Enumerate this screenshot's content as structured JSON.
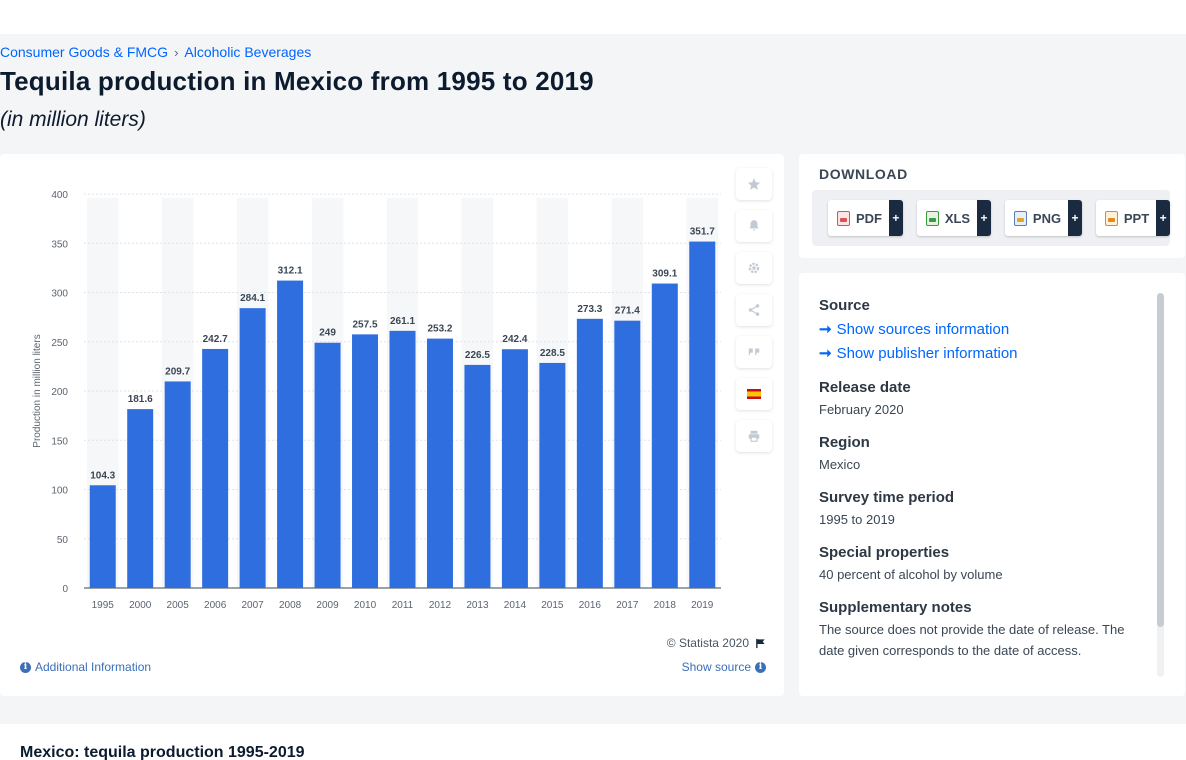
{
  "breadcrumb": [
    {
      "label": "Consumer Goods & FMCG"
    },
    {
      "label": "Alcoholic Beverages"
    }
  ],
  "breadcrumb_separator": "›",
  "page": {
    "title": "Tequila production in Mexico from 1995 to 2019",
    "subtitle": "(in million liters)"
  },
  "chart_data": {
    "type": "bar",
    "categories": [
      "1995",
      "2000",
      "2005",
      "2006",
      "2007",
      "2008",
      "2009",
      "2010",
      "2011",
      "2012",
      "2013",
      "2014",
      "2015",
      "2016",
      "2017",
      "2018",
      "2019"
    ],
    "values": [
      104.3,
      181.6,
      209.7,
      242.7,
      284.1,
      312.1,
      249,
      257.5,
      261.1,
      253.2,
      226.5,
      242.4,
      228.5,
      273.3,
      271.4,
      309.1,
      351.7
    ],
    "value_labels": [
      "104.3",
      "181.6",
      "209.7",
      "242.7",
      "284.1",
      "312.1",
      "249",
      "257.5",
      "261.1",
      "253.2",
      "226.5",
      "242.4",
      "228.5",
      "273.3",
      "271.4",
      "309.1",
      "351.7"
    ],
    "ylabel": "Production in million liters",
    "ylim": [
      0,
      400
    ],
    "yticks": [
      "0",
      "50",
      "100",
      "150",
      "200",
      "250",
      "300",
      "350",
      "400"
    ],
    "grid": true,
    "bar_color": "#2f6ede"
  },
  "chart_footer": {
    "copyright": "© Statista 2020",
    "additional_info": "Additional Information",
    "show_source": "Show source"
  },
  "toolbar_icons": [
    "star-icon",
    "bell-icon",
    "gear-icon",
    "share-icon",
    "quote-icon",
    "spain-flag-icon",
    "print-icon"
  ],
  "download": {
    "label": "DOWNLOAD",
    "plus": "+",
    "buttons": [
      {
        "label": "PDF",
        "icon": "pdf-file-icon"
      },
      {
        "label": "XLS",
        "icon": "xls-file-icon"
      },
      {
        "label": "PNG",
        "icon": "png-file-icon"
      },
      {
        "label": "PPT",
        "icon": "ppt-file-icon"
      }
    ]
  },
  "source_panel": {
    "source_heading": "Source",
    "show_sources": "Show sources information",
    "show_publisher": "Show publisher information",
    "release_heading": "Release date",
    "release_value": "February 2020",
    "region_heading": "Region",
    "region_value": "Mexico",
    "survey_heading": "Survey time period",
    "survey_value": "1995 to 2019",
    "special_heading": "Special properties",
    "special_value": "40 percent of alcohol by volume",
    "notes_heading": "Supplementary notes",
    "notes_value": "The source does not provide the date of release. The date given corresponds to the date of access."
  },
  "bottom": {
    "title": "Mexico: tequila production 1995-2019"
  }
}
